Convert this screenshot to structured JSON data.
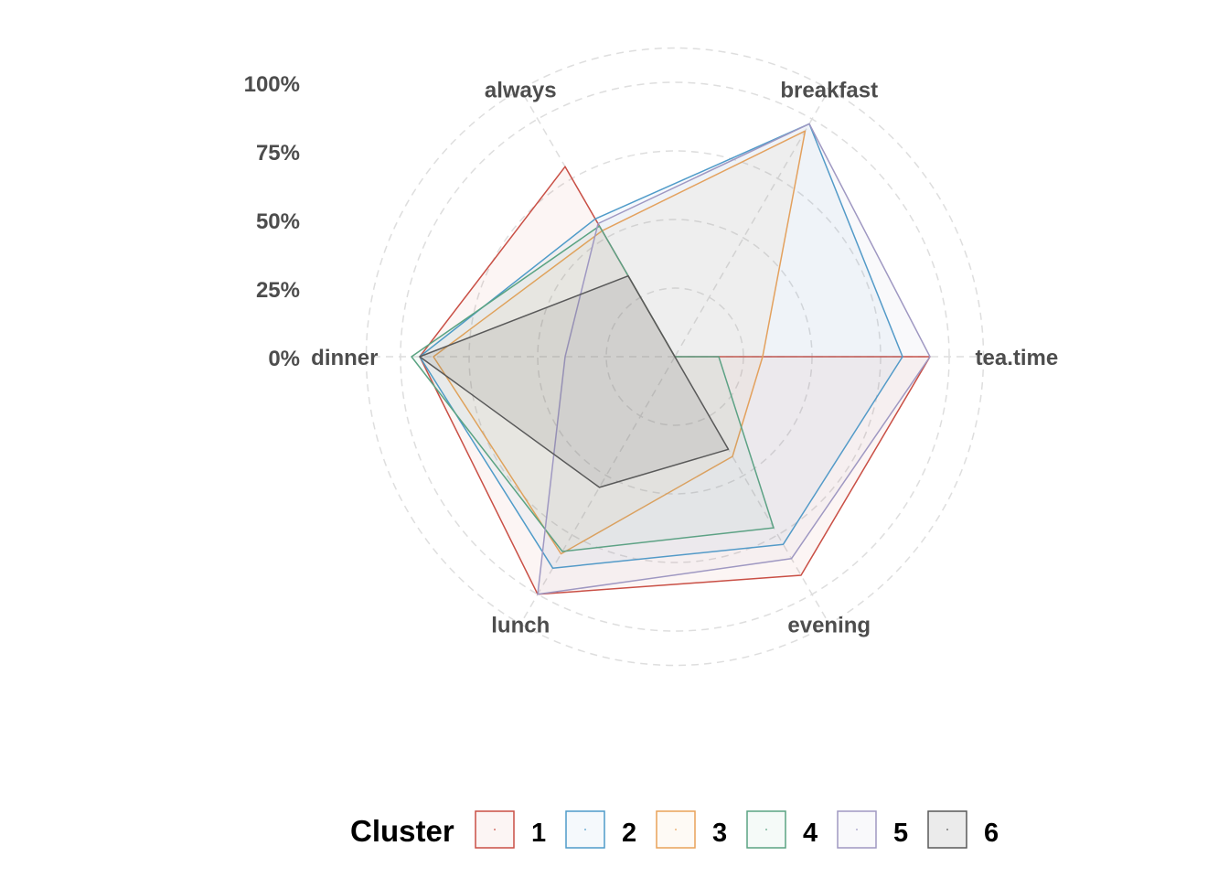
{
  "chart_data": {
    "type": "radar",
    "axes": [
      "tea.time",
      "breakfast",
      "always",
      "dinner",
      "lunch",
      "evening"
    ],
    "rticks": [
      "0%",
      "25%",
      "50%",
      "75%",
      "100%"
    ],
    "rlim": [
      0,
      1
    ],
    "grid": "dashed circles",
    "legend": {
      "title": "Cluster",
      "position": "bottom",
      "entries": [
        "1",
        "2",
        "3",
        "4",
        "5",
        "6"
      ]
    },
    "series": [
      {
        "name": "1",
        "color": "#c94f45",
        "values": [
          0.93,
          0.0,
          0.8,
          0.93,
          1.0,
          0.92
        ]
      },
      {
        "name": "2",
        "color": "#4f9bc9",
        "values": [
          0.83,
          0.98,
          0.58,
          0.93,
          0.89,
          0.79
        ]
      },
      {
        "name": "3",
        "color": "#e8a259",
        "values": [
          0.32,
          0.95,
          0.53,
          0.88,
          0.83,
          0.42
        ]
      },
      {
        "name": "4",
        "color": "#5aa382",
        "values": [
          0.16,
          0.0,
          0.55,
          0.96,
          0.82,
          0.72
        ]
      },
      {
        "name": "5",
        "color": "#9f98c2",
        "values": [
          0.93,
          0.98,
          0.56,
          0.4,
          1.0,
          0.85
        ]
      },
      {
        "name": "6",
        "color": "#595959",
        "values": [
          0.0,
          0.0,
          0.34,
          0.93,
          0.55,
          0.39
        ]
      }
    ]
  }
}
